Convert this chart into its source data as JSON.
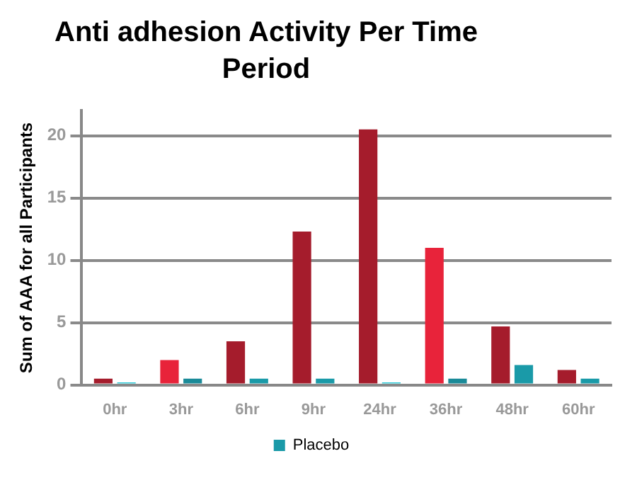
{
  "chart_data": {
    "type": "bar",
    "title": "Anti adhesion Activity Per Time Period",
    "ylabel": "Sum of AAA for all Participants",
    "categories": [
      "0hr",
      "3hr",
      "6hr",
      "9hr",
      "24hr",
      "36hr",
      "48hr",
      "60hr"
    ],
    "series": [
      {
        "color": "#a51c2c",
        "colors": [
          "#a51c2c",
          "#e8233a",
          "#a51c2c",
          "#a51c2c",
          "#a51c2c",
          "#e8233a",
          "#a51c2c",
          "#a51c2c"
        ],
        "values": [
          0.5,
          2,
          3.5,
          12.3,
          20.5,
          11,
          4.7,
          1.2
        ]
      },
      {
        "name": "Placebo",
        "color": "#1a9aa8",
        "colors": [
          "#2ccad6",
          "#1a8a98",
          "#1a9aa8",
          "#1a9aa8",
          "#2ccad6",
          "#1a8a98",
          "#1a9aa8",
          "#1a9aa8"
        ],
        "values": [
          0.2,
          0.5,
          0.5,
          0.5,
          0.2,
          0.5,
          1.6,
          0.5
        ]
      }
    ],
    "ylim": [
      0,
      22
    ],
    "yticks": [
      0,
      5,
      10,
      15,
      20
    ],
    "grid": "y",
    "legend": "bottom"
  }
}
